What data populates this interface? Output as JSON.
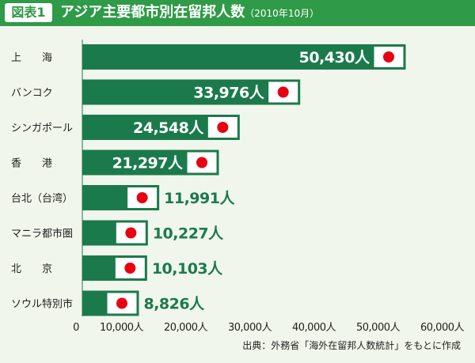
{
  "figure_label": "図表1",
  "title": "アジア主要都市別在留邦人数",
  "subtitle": "（2010年10月）",
  "source": "出典：外務省「海外在留邦人数統計」をもとに作成",
  "colors": {
    "bar": "#1b7a4c",
    "value_text_inside": "#ffffff",
    "value_text_outside": "#1b7a4c",
    "flag_red": "#e60012",
    "background": "#f1f6ec",
    "title_bar": "#2f9a47"
  },
  "chart_data": {
    "type": "bar",
    "orientation": "horizontal",
    "categories": [
      "上　　海",
      "バンコク",
      "シンガポール",
      "香　　港",
      "台北（台湾）",
      "マニラ都市圏",
      "北　　京",
      "ソウル特別市"
    ],
    "values": [
      50430,
      33976,
      24548,
      21297,
      11991,
      10227,
      10103,
      8826
    ],
    "value_labels": [
      "50,430人",
      "33,976人",
      "24,548人",
      "21,297人",
      "11,991人",
      "10,227人",
      "10,103人",
      "8,826人"
    ],
    "xlim": [
      0,
      60000
    ],
    "x_ticks": [
      0,
      10000,
      20000,
      30000,
      40000,
      50000,
      60000
    ],
    "x_tick_labels": [
      "0",
      "10,000人",
      "20,000人",
      "30,000人",
      "40,000人",
      "50,000人",
      "60,000人"
    ],
    "flag_icon": "japan-flag-icon",
    "grid": false,
    "legend": "none"
  }
}
